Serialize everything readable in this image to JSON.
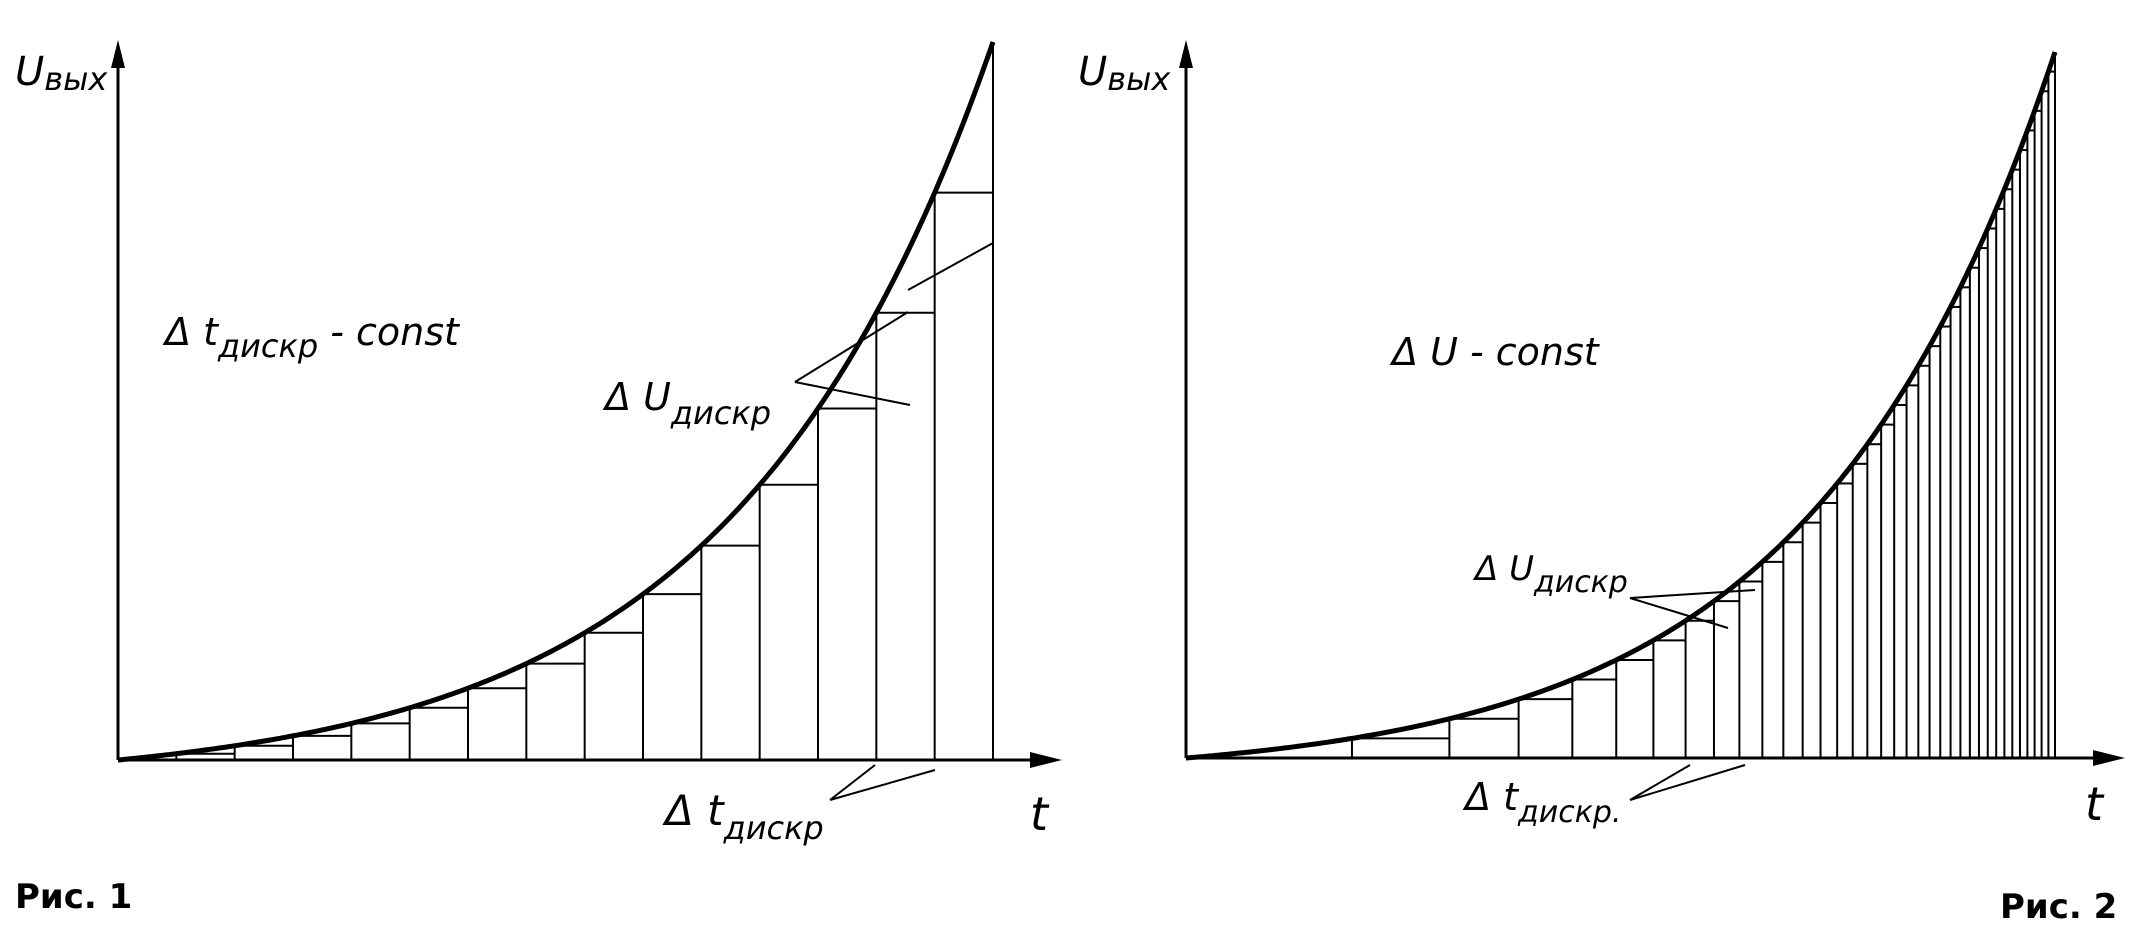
{
  "figure1": {
    "y_axis_label_main": "U",
    "y_axis_label_sub": "вых",
    "x_axis_label": "t",
    "mode_label_main": "Δ t",
    "mode_label_sub": "дискр",
    "mode_label_tail": " - const",
    "delta_u_label_main": "Δ U",
    "delta_u_label_sub": "дискр",
    "delta_t_label_main": "Δ t",
    "delta_t_label_sub": "дискр",
    "caption": "Рис. 1"
  },
  "figure2": {
    "y_axis_label_main": "U",
    "y_axis_label_sub": "вых",
    "x_axis_label": "t",
    "mode_label": "Δ U - const",
    "delta_u_label_main": "Δ U",
    "delta_u_label_sub": "дискр",
    "delta_t_label_main": "Δ t",
    "delta_t_label_sub": "дискр.",
    "caption": "Рис. 2"
  }
}
